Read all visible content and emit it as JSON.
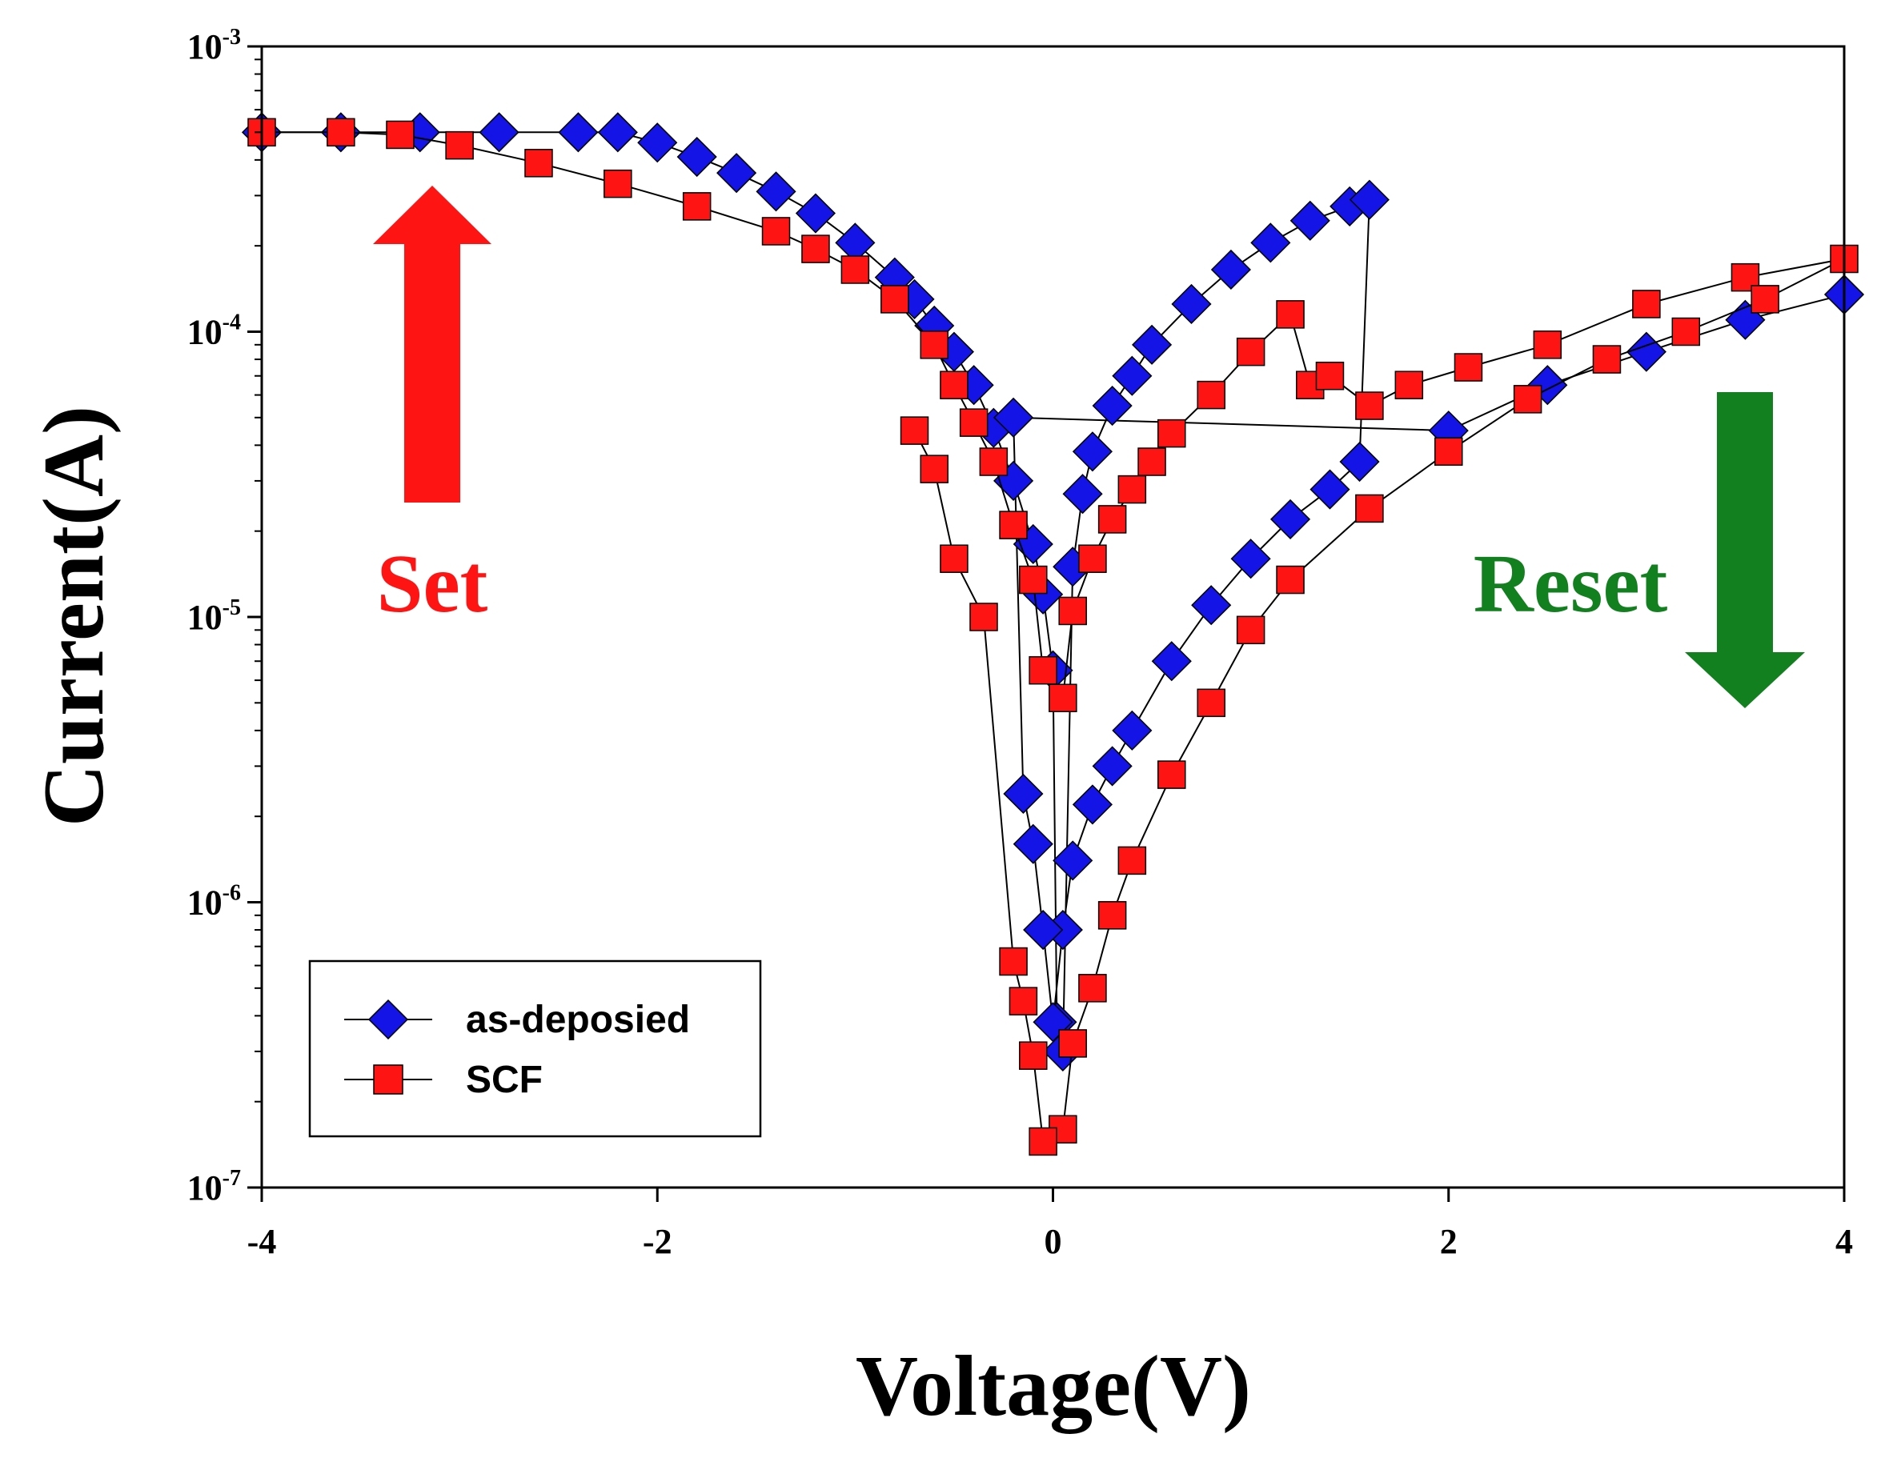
{
  "chart_data": {
    "type": "scatter",
    "title": "",
    "xlabel": "Voltage(V)",
    "ylabel": "Current(A)",
    "xscale": "linear",
    "yscale": "log",
    "xlim": [
      -4,
      4
    ],
    "ylim": [
      1e-07,
      0.001
    ],
    "xticks": [
      {
        "value": -4,
        "label": "-4"
      },
      {
        "value": -2,
        "label": "-2"
      },
      {
        "value": 0,
        "label": "0"
      },
      {
        "value": 2,
        "label": "2"
      },
      {
        "value": 4,
        "label": "4"
      }
    ],
    "yticks": [
      {
        "value": 0.001,
        "base": "10",
        "exp": "-3"
      },
      {
        "value": 0.0001,
        "base": "10",
        "exp": "-4"
      },
      {
        "value": 1e-05,
        "base": "10",
        "exp": "-5"
      },
      {
        "value": 1e-06,
        "base": "10",
        "exp": "-6"
      },
      {
        "value": 1e-07,
        "base": "10",
        "exp": "-7"
      }
    ],
    "legend": {
      "position": "bottom-left",
      "entries": [
        {
          "label": "as-deposied",
          "marker": "diamond",
          "color": "#1414e6"
        },
        {
          "label": "SCF",
          "marker": "square",
          "color": "#ff1414"
        }
      ]
    },
    "annotations": [
      {
        "text": "Set",
        "color": "#ff1414",
        "arrow": "up",
        "arrow_color": "#ff1414"
      },
      {
        "text": "Reset",
        "color": "#12801f",
        "arrow": "down",
        "arrow_color": "#12801f"
      }
    ],
    "series": [
      {
        "name": "as-deposied",
        "marker": "diamond",
        "color": "#1414e6",
        "points": [
          [
            -4.0,
            0.0005
          ],
          [
            -3.6,
            0.0005
          ],
          [
            -3.2,
            0.0005
          ],
          [
            -2.8,
            0.0005
          ],
          [
            -2.4,
            0.0005
          ],
          [
            -2.2,
            0.0005
          ],
          [
            -2.0,
            0.00046
          ],
          [
            -1.8,
            0.00041
          ],
          [
            -1.6,
            0.00036
          ],
          [
            -1.4,
            0.00031
          ],
          [
            -1.2,
            0.00026
          ],
          [
            -1.0,
            0.000205
          ],
          [
            -0.8,
            0.000155
          ],
          [
            -0.7,
            0.00013
          ],
          [
            -0.6,
            0.000105
          ],
          [
            -0.5,
            8.5e-05
          ],
          [
            -0.4,
            6.5e-05
          ],
          [
            -0.3,
            4.6e-05
          ],
          [
            -0.2,
            3e-05
          ],
          [
            -0.1,
            1.8e-05
          ],
          [
            -0.05,
            1.2e-05
          ],
          [
            0.0,
            6.5e-06
          ],
          [
            0.02,
            3.8e-07
          ],
          [
            0.05,
            3e-07
          ],
          [
            0.1,
            1.5e-05
          ],
          [
            0.15,
            2.7e-05
          ],
          [
            0.2,
            3.8e-05
          ],
          [
            0.3,
            5.5e-05
          ],
          [
            0.4,
            7e-05
          ],
          [
            0.5,
            9e-05
          ],
          [
            0.7,
            0.000125
          ],
          [
            0.9,
            0.000165
          ],
          [
            1.1,
            0.000205
          ],
          [
            1.3,
            0.000245
          ],
          [
            1.5,
            0.000275
          ],
          [
            1.6,
            0.00029
          ],
          [
            1.55,
            3.5e-05
          ],
          [
            1.4,
            2.8e-05
          ],
          [
            1.2,
            2.2e-05
          ],
          [
            1.0,
            1.6e-05
          ],
          [
            0.8,
            1.1e-05
          ],
          [
            0.6,
            7e-06
          ],
          [
            0.4,
            4e-06
          ],
          [
            0.3,
            3e-06
          ],
          [
            0.2,
            2.2e-06
          ],
          [
            0.1,
            1.4e-06
          ],
          [
            0.05,
            8e-07
          ],
          [
            0.0,
            3.8e-07
          ],
          [
            -0.05,
            8e-07
          ],
          [
            -0.1,
            1.6e-06
          ],
          [
            -0.15,
            2.4e-06
          ],
          [
            -0.2,
            5e-05
          ],
          [
            2.0,
            4.5e-05
          ],
          [
            2.5,
            6.5e-05
          ],
          [
            3.0,
            8.5e-05
          ],
          [
            3.5,
            0.00011
          ],
          [
            4.0,
            0.000135
          ]
        ]
      },
      {
        "name": "SCF",
        "marker": "square",
        "color": "#ff1414",
        "points": [
          [
            -4.0,
            0.0005
          ],
          [
            -3.6,
            0.0005
          ],
          [
            -3.3,
            0.00049
          ],
          [
            -3.0,
            0.00045
          ],
          [
            -2.6,
            0.00039
          ],
          [
            -2.2,
            0.00033
          ],
          [
            -1.8,
            0.000275
          ],
          [
            -1.4,
            0.000225
          ],
          [
            -1.2,
            0.000195
          ],
          [
            -1.0,
            0.000165
          ],
          [
            -0.8,
            0.00013
          ],
          [
            -0.6,
            9e-05
          ],
          [
            -0.5,
            6.5e-05
          ],
          [
            -0.4,
            4.8e-05
          ],
          [
            -0.3,
            3.5e-05
          ],
          [
            -0.2,
            2.1e-05
          ],
          [
            -0.1,
            1.35e-05
          ],
          [
            -0.05,
            6.5e-06
          ],
          [
            0.05,
            5.2e-06
          ],
          [
            0.1,
            1.05e-05
          ],
          [
            0.2,
            1.6e-05
          ],
          [
            0.3,
            2.2e-05
          ],
          [
            0.4,
            2.8e-05
          ],
          [
            0.5,
            3.5e-05
          ],
          [
            0.6,
            4.4e-05
          ],
          [
            0.8,
            6e-05
          ],
          [
            1.0,
            8.5e-05
          ],
          [
            1.2,
            0.000115
          ],
          [
            1.3,
            6.5e-05
          ],
          [
            1.4,
            7e-05
          ],
          [
            1.6,
            5.5e-05
          ],
          [
            1.8,
            6.5e-05
          ],
          [
            2.1,
            7.5e-05
          ],
          [
            2.5,
            9e-05
          ],
          [
            3.0,
            0.000125
          ],
          [
            3.5,
            0.000155
          ],
          [
            4.0,
            0.00018
          ],
          [
            3.6,
            0.00013
          ],
          [
            3.2,
            0.0001
          ],
          [
            2.8,
            8e-05
          ],
          [
            2.4,
            5.8e-05
          ],
          [
            2.0,
            3.8e-05
          ],
          [
            1.6,
            2.4e-05
          ],
          [
            1.2,
            1.35e-05
          ],
          [
            1.0,
            9e-06
          ],
          [
            0.8,
            5e-06
          ],
          [
            0.6,
            2.8e-06
          ],
          [
            0.4,
            1.4e-06
          ],
          [
            0.3,
            9e-07
          ],
          [
            0.2,
            5e-07
          ],
          [
            0.1,
            3.2e-07
          ],
          [
            0.05,
            1.6e-07
          ],
          [
            -0.05,
            1.45e-07
          ],
          [
            -0.1,
            2.9e-07
          ],
          [
            -0.15,
            4.5e-07
          ],
          [
            -0.2,
            6.2e-07
          ],
          [
            -0.35,
            1e-05
          ],
          [
            -0.5,
            1.6e-05
          ],
          [
            -0.6,
            3.3e-05
          ],
          [
            -0.7,
            4.5e-05
          ]
        ]
      }
    ]
  }
}
